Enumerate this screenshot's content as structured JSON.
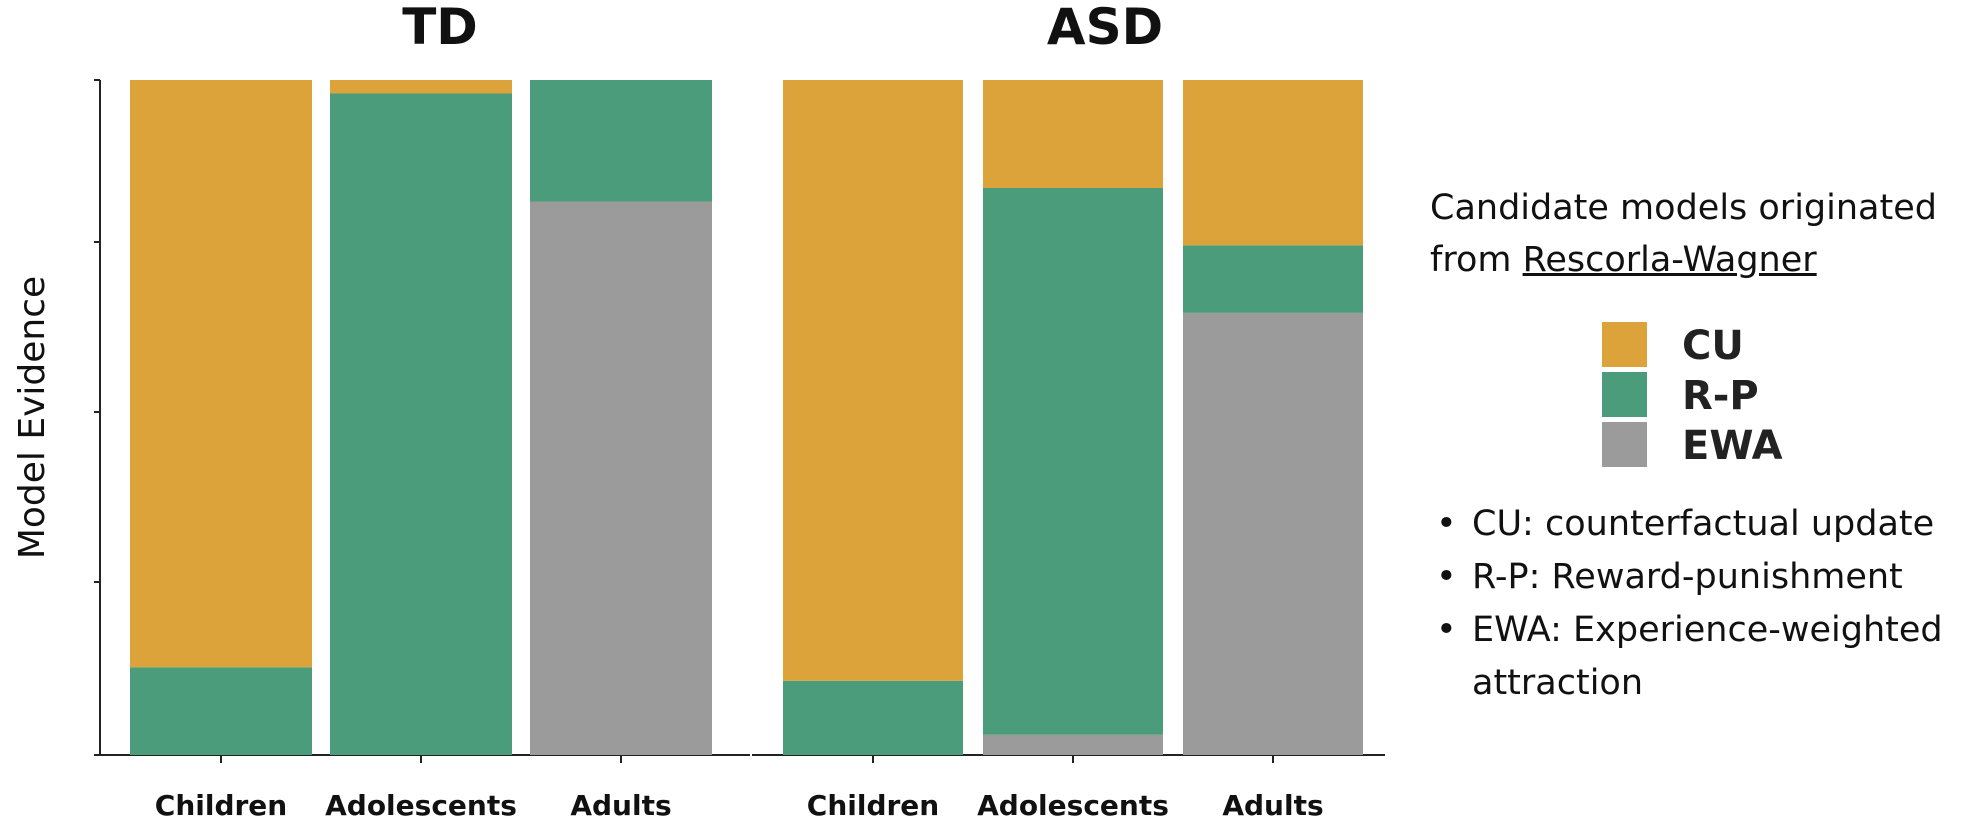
{
  "chart_data": {
    "type": "bar",
    "stacked": true,
    "normalized": true,
    "ylabel": "Model Evidence",
    "panels": [
      {
        "title": "TD",
        "categories": [
          "Children",
          "Adolescents",
          "Adults"
        ],
        "series": [
          {
            "name": "EWA",
            "color": "#9b9b9b",
            "values": [
              0.0,
              0.0,
              0.82
            ]
          },
          {
            "name": "R-P",
            "color": "#4a9c7a",
            "values": [
              0.13,
              0.98,
              0.18
            ]
          },
          {
            "name": "CU",
            "color": "#dca33a",
            "values": [
              0.87,
              0.02,
              0.0
            ]
          }
        ]
      },
      {
        "title": "ASD",
        "categories": [
          "Children",
          "Adolescents",
          "Adults"
        ],
        "series": [
          {
            "name": "EWA",
            "color": "#9b9b9b",
            "values": [
              0.0,
              0.03,
              0.655
            ]
          },
          {
            "name": "R-P",
            "color": "#4a9c7a",
            "values": [
              0.11,
              0.81,
              0.1
            ]
          },
          {
            "name": "CU",
            "color": "#dca33a",
            "values": [
              0.89,
              0.16,
              0.245
            ]
          }
        ]
      }
    ],
    "legend": {
      "position": "right",
      "entries": [
        {
          "label": "CU",
          "color": "#dca33a"
        },
        {
          "label": "R-P",
          "color": "#4a9c7a"
        },
        {
          "label": "EWA",
          "color": "#9b9b9b"
        }
      ]
    },
    "grid": false
  },
  "note": {
    "line1": "Candidate models originated",
    "line2_prefix": "from ",
    "line2_link": "Rescorla-Wagner"
  },
  "abbreviations": [
    {
      "bullet": "•",
      "text": "CU: counterfactual update"
    },
    {
      "bullet": "•",
      "text": "R-P: Reward-punishment"
    },
    {
      "bullet": "•",
      "text": "EWA: Experience-weighted attraction"
    }
  ]
}
